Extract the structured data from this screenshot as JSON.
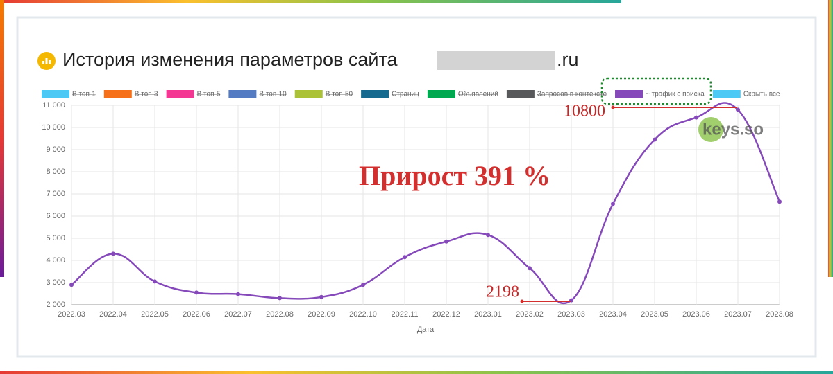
{
  "chart_data": {
    "type": "line",
    "title": "История изменения параметров сайта",
    "title_domain": ".ru",
    "hidden_series": [
      {
        "name": "В топ-1",
        "color": "#4dc9f6"
      },
      {
        "name": "В топ-3",
        "color": "#f67019"
      },
      {
        "name": "В топ-5",
        "color": "#f53794"
      },
      {
        "name": "В топ-10",
        "color": "#537bc4"
      },
      {
        "name": "В топ-50",
        "color": "#acc236"
      },
      {
        "name": "Страниц",
        "color": "#166a8f"
      },
      {
        "name": "Объявлений",
        "color": "#00a950"
      },
      {
        "name": "Запросов в контексте",
        "color": "#58595b"
      }
    ],
    "series": [
      {
        "name": "~ трафик с поиска",
        "color": "#8549ba",
        "values": [
          2900,
          4300,
          3050,
          2550,
          2480,
          2300,
          2350,
          2900,
          4150,
          4850,
          5150,
          3650,
          2198,
          6550,
          9450,
          10450,
          10800,
          6650
        ]
      }
    ],
    "hide_all_label": "Скрыть все",
    "hide_all_color": "#4dc9f6",
    "categories": [
      "2022.03",
      "2022.04",
      "2022.05",
      "2022.06",
      "2022.07",
      "2022.08",
      "2022.09",
      "2022.10",
      "2022.11",
      "2022.12",
      "2023.01",
      "2023.02",
      "2023.03",
      "2023.04",
      "2023.05",
      "2023.06",
      "2023.07",
      "2023.08"
    ],
    "x_label": "Дата",
    "ylim": [
      2000,
      11000
    ],
    "yticks": [
      {
        "value": 2000,
        "label": "2 000"
      },
      {
        "value": 3000,
        "label": "3 000"
      },
      {
        "value": 4000,
        "label": "4 000"
      },
      {
        "value": 5000,
        "label": "5 000"
      },
      {
        "value": 6000,
        "label": "6 000"
      },
      {
        "value": 7000,
        "label": "7 000"
      },
      {
        "value": 8000,
        "label": "8 000"
      },
      {
        "value": 9000,
        "label": "9 000"
      },
      {
        "value": 10000,
        "label": "10 000"
      },
      {
        "value": 11000,
        "label": "11 000"
      }
    ],
    "grid": true,
    "annotations": {
      "max_label": "10800",
      "min_label": "2198",
      "growth": "Прирост 391 %",
      "watermark": "keys.so"
    }
  }
}
